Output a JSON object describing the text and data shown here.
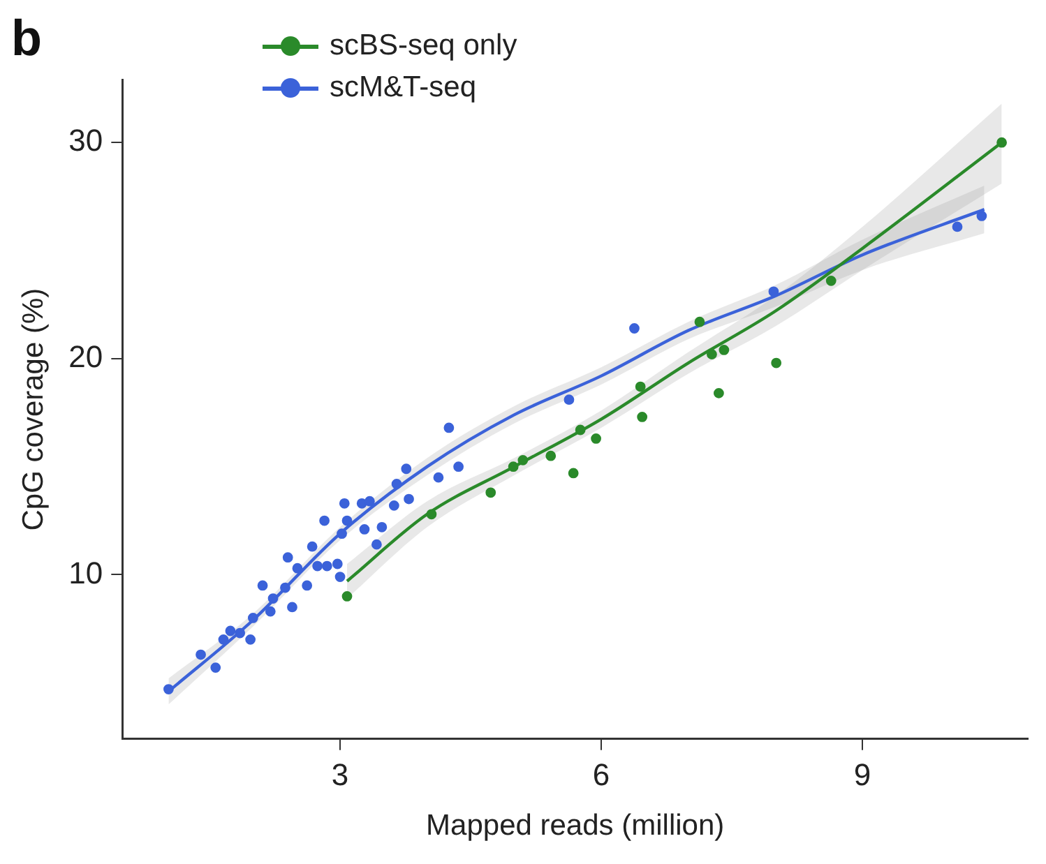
{
  "chart_data": {
    "type": "scatter",
    "title": "b",
    "xlabel": "Mapped reads (million)",
    "ylabel": "CpG coverage (%)",
    "xlim": [
      0.5,
      10.9
    ],
    "ylim": [
      2.4,
      32.9
    ],
    "xticks": [
      3,
      6,
      9
    ],
    "yticks": [
      10,
      20,
      30
    ],
    "grid": false,
    "legend": "top left",
    "marker": "circle",
    "series": [
      {
        "name": "scBS-seq only",
        "color": "#2a8a2a",
        "x": [
          3.08,
          4.05,
          4.73,
          4.99,
          5.1,
          5.42,
          5.68,
          5.76,
          5.94,
          6.45,
          6.47,
          7.13,
          7.27,
          7.35,
          7.41,
          8.01,
          8.64,
          10.6
        ],
        "values": [
          9.0,
          12.8,
          13.8,
          15.0,
          15.3,
          15.5,
          14.7,
          16.7,
          16.3,
          18.7,
          17.3,
          21.7,
          20.2,
          18.4,
          20.4,
          19.8,
          23.6,
          30.0
        ]
      },
      {
        "name": "scM&T-seq",
        "color": "#3b62d9",
        "x": [
          1.03,
          1.4,
          1.57,
          1.66,
          1.74,
          1.85,
          1.97,
          2.0,
          2.11,
          2.2,
          2.23,
          2.37,
          2.4,
          2.45,
          2.51,
          2.62,
          2.68,
          2.74,
          2.82,
          2.85,
          2.97,
          3.0,
          3.02,
          3.05,
          3.08,
          3.25,
          3.28,
          3.34,
          3.42,
          3.48,
          3.62,
          3.65,
          3.76,
          3.79,
          4.13,
          4.25,
          4.36,
          5.63,
          6.38,
          7.98,
          10.09,
          10.37
        ],
        "values": [
          4.7,
          6.3,
          5.7,
          7.0,
          7.4,
          7.3,
          7.0,
          8.0,
          9.5,
          8.3,
          8.9,
          9.4,
          10.8,
          8.5,
          10.3,
          9.5,
          11.3,
          10.4,
          12.5,
          10.4,
          10.5,
          9.9,
          11.9,
          13.3,
          12.5,
          13.3,
          12.1,
          13.4,
          11.4,
          12.2,
          13.2,
          14.2,
          14.9,
          13.5,
          14.5,
          16.8,
          15.0,
          18.1,
          21.4,
          23.1,
          26.1,
          26.6
        ]
      },
      {
        "type": "line",
        "color": "#2a8a2a",
        "marker": "none",
        "x": [
          3.08,
          4,
          5,
          6,
          7,
          8,
          9,
          10.6
        ],
        "values": [
          9.7,
          12.8,
          15.0,
          17.2,
          19.8,
          22.2,
          25.1,
          30.0
        ],
        "lower": [
          8.9,
          12.2,
          14.6,
          16.8,
          19.3,
          21.5,
          24.1,
          28.1
        ],
        "upper": [
          10.5,
          13.4,
          15.4,
          17.6,
          20.3,
          22.9,
          26.1,
          31.8
        ]
      },
      {
        "type": "line",
        "color": "#3b62d9",
        "marker": "none",
        "x": [
          1.03,
          2,
          3,
          4,
          5,
          6,
          7,
          8,
          9,
          10.4
        ],
        "values": [
          4.6,
          7.9,
          11.9,
          15.0,
          17.4,
          19.2,
          21.3,
          22.9,
          24.8,
          26.9
        ],
        "lower": [
          4.0,
          7.6,
          11.6,
          14.6,
          17.0,
          18.8,
          20.9,
          22.4,
          24.1,
          25.8
        ],
        "upper": [
          5.2,
          8.2,
          12.2,
          15.4,
          17.8,
          19.6,
          21.7,
          23.4,
          25.5,
          28.0
        ]
      }
    ]
  }
}
